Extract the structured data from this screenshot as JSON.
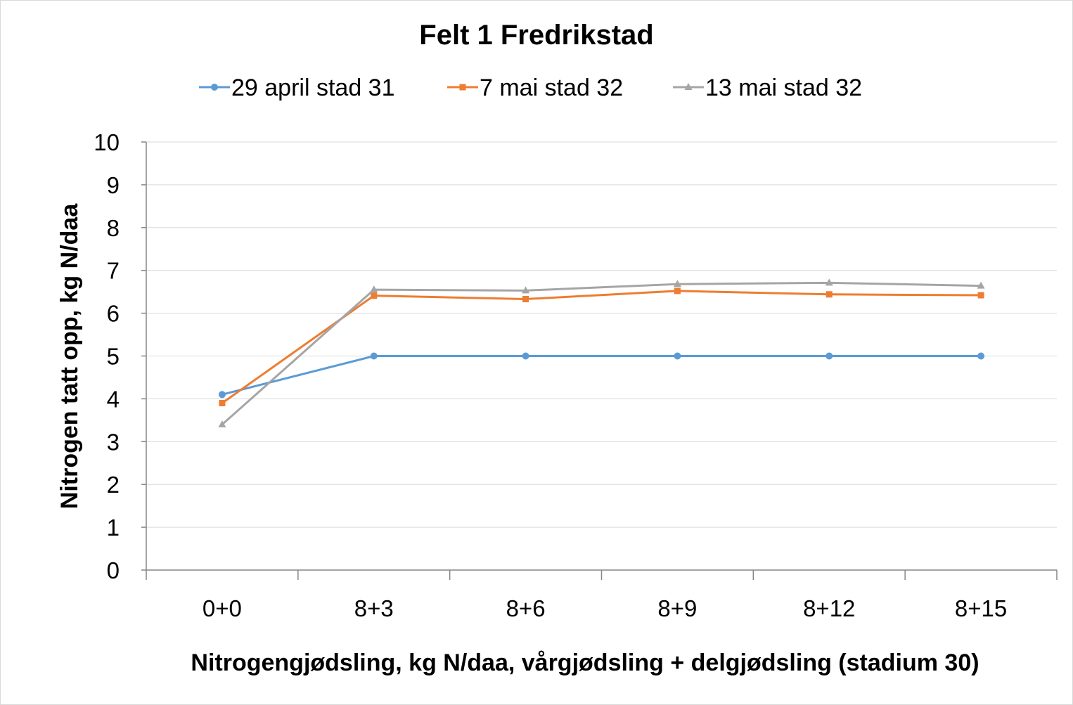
{
  "chart_data": {
    "type": "line",
    "title": "Felt 1 Fredrikstad",
    "xlabel": "Nitrogengjødsling, kg N/daa, vårgjødsling + delgjødsling (stadium 30)",
    "ylabel": "Nitrogen tatt opp, kg N/daa",
    "categories": [
      "0+0",
      "8+3",
      "8+6",
      "8+9",
      "8+12",
      "8+15"
    ],
    "ylim": [
      0,
      10
    ],
    "yticks": [
      "0",
      "1",
      "2",
      "3",
      "4",
      "5",
      "6",
      "7",
      "8",
      "9",
      "10"
    ],
    "grid": true,
    "legend_position": "top",
    "series": [
      {
        "name": "29 april stad 31",
        "color": "#5b9bd5",
        "marker": "circle",
        "values": [
          4.1,
          5.0,
          5.0,
          5.0,
          5.0,
          5.0
        ]
      },
      {
        "name": "7 mai stad 32",
        "color": "#ed7d31",
        "marker": "square",
        "values": [
          3.9,
          6.41,
          6.33,
          6.52,
          6.44,
          6.42
        ]
      },
      {
        "name": "13 mai stad 32",
        "color": "#a5a5a5",
        "marker": "triangle",
        "values": [
          3.4,
          6.55,
          6.53,
          6.68,
          6.71,
          6.64
        ]
      }
    ]
  }
}
